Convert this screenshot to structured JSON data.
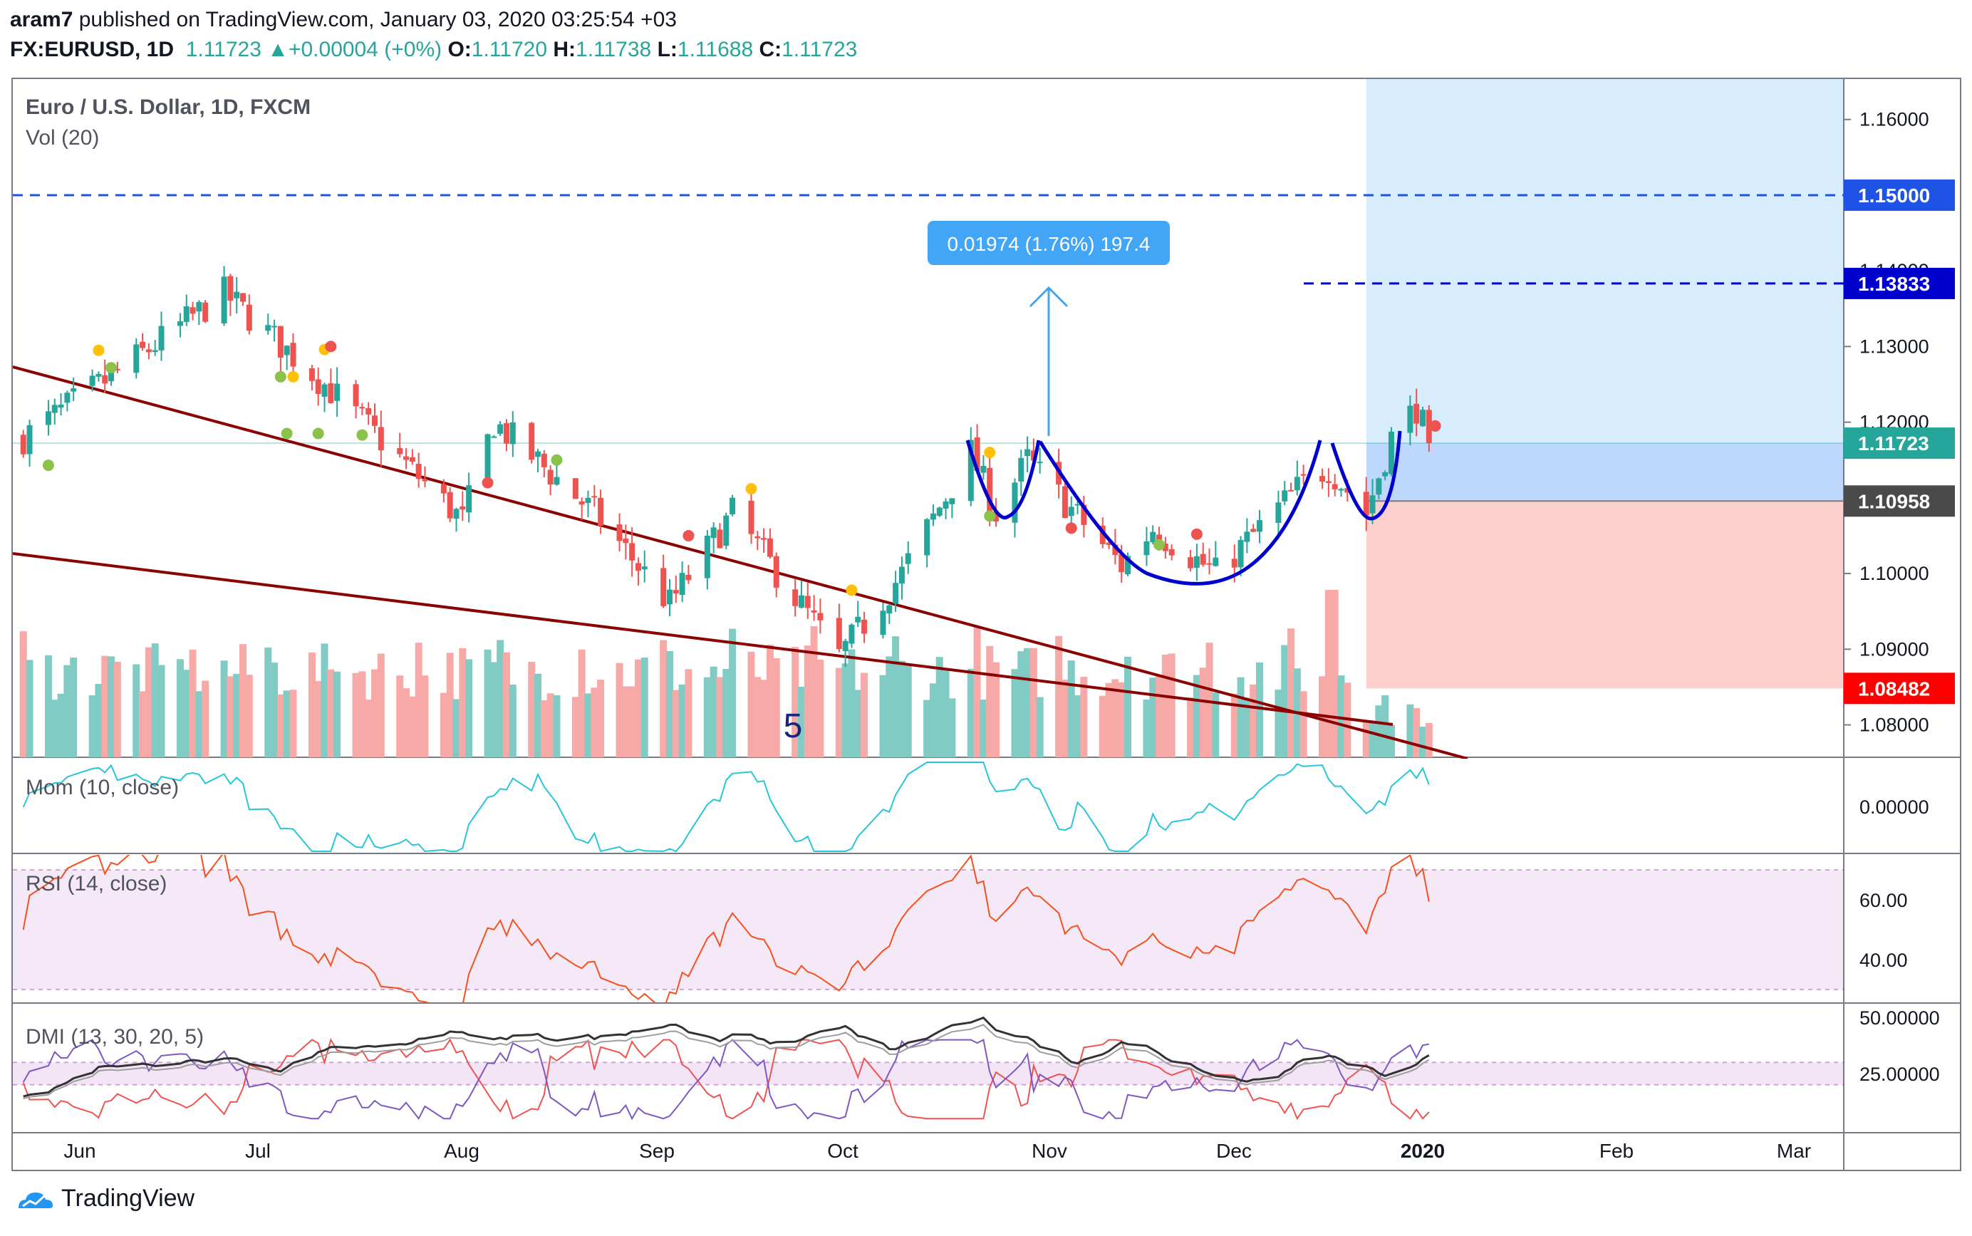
{
  "header": {
    "author": "aram7",
    "published": " published on TradingView.com, January 03, 2020 03:25:54 +03",
    "symbol": "FX:EURUSD, 1D",
    "last": "1.11723",
    "change": "+0.00004 (+0%)",
    "o_label": "O:",
    "o": "1.11720",
    "h_label": "H:",
    "h": "1.11738",
    "l_label": "L:",
    "l": "1.11688",
    "c_label": "C:",
    "c": "1.11723"
  },
  "footer": {
    "brand": "TradingView"
  },
  "colors": {
    "up": "#26a69a",
    "down": "#ef5350",
    "trend": "#8b0000",
    "pattern": "#0000cd",
    "target": "#1e53e5"
  },
  "chart_data": [
    {
      "type": "candlestick",
      "title": "Euro / U.S. Dollar, 1D, FXCM",
      "volume_label": "Vol (20)",
      "x_ticks": [
        "Jun",
        "Jul",
        "Aug",
        "Sep",
        "Oct",
        "Nov",
        "Dec",
        "2020",
        "Feb",
        "Mar"
      ],
      "y_ticks": [
        "1.16000",
        "1.15000",
        "1.14000",
        "1.13000",
        "1.12000",
        "1.11000",
        "1.10000",
        "1.09000",
        "1.08000"
      ],
      "ylim": [
        1.076,
        1.166
      ],
      "price_tags": [
        {
          "value": "1.15000",
          "kind": "level"
        },
        {
          "value": "1.13833",
          "kind": "level"
        },
        {
          "value": "1.11723",
          "kind": "last"
        },
        {
          "value": "1.10958",
          "kind": "entry"
        },
        {
          "value": "1.08482",
          "kind": "stop"
        }
      ],
      "levels": [
        {
          "price": 1.15,
          "style": "dashed"
        },
        {
          "price": 1.13833,
          "style": "dashed"
        }
      ],
      "measure_label": "0.01974 (1.76%) 197.4",
      "wave_label": "5",
      "position": {
        "target": 1.166,
        "entry": 1.10958,
        "stop": 1.08482
      },
      "anchors": [
        {
          "date": "2019-05-23",
          "close": 1.118
        },
        {
          "date": "2019-06-06",
          "close": 1.126
        },
        {
          "date": "2019-06-24",
          "close": 1.137
        },
        {
          "date": "2019-07-10",
          "close": 1.125
        },
        {
          "date": "2019-08-01",
          "close": 1.107
        },
        {
          "date": "2019-08-06",
          "close": 1.12
        },
        {
          "date": "2019-08-22",
          "close": 1.108
        },
        {
          "date": "2019-09-03",
          "close": 1.096
        },
        {
          "date": "2019-09-13",
          "close": 1.108
        },
        {
          "date": "2019-09-30",
          "close": 1.089
        },
        {
          "date": "2019-10-10",
          "close": 1.1
        },
        {
          "date": "2019-10-21",
          "close": 1.116
        },
        {
          "date": "2019-10-25",
          "close": 1.108
        },
        {
          "date": "2019-10-30",
          "close": 1.115
        },
        {
          "date": "2019-11-14",
          "close": 1.101
        },
        {
          "date": "2019-11-19",
          "close": 1.106
        },
        {
          "date": "2019-11-29",
          "close": 1.1
        },
        {
          "date": "2019-12-13",
          "close": 1.112
        },
        {
          "date": "2019-12-17",
          "close": 1.114
        },
        {
          "date": "2019-12-23",
          "close": 1.108
        },
        {
          "date": "2019-12-27",
          "close": 1.118
        },
        {
          "date": "2019-12-31",
          "close": 1.122
        },
        {
          "date": "2020-01-02",
          "close": 1.1172
        }
      ]
    },
    {
      "type": "line",
      "title": "Mom (10, close)",
      "y_ticks": [
        "0.00000"
      ]
    },
    {
      "type": "line",
      "title": "RSI (14, close)",
      "y_ticks": [
        "60.00",
        "40.00"
      ],
      "band": [
        30,
        70
      ]
    },
    {
      "type": "line",
      "title": "DMI (13, 30, 20, 5)",
      "y_ticks": [
        "50.00000",
        "25.00000"
      ]
    }
  ]
}
